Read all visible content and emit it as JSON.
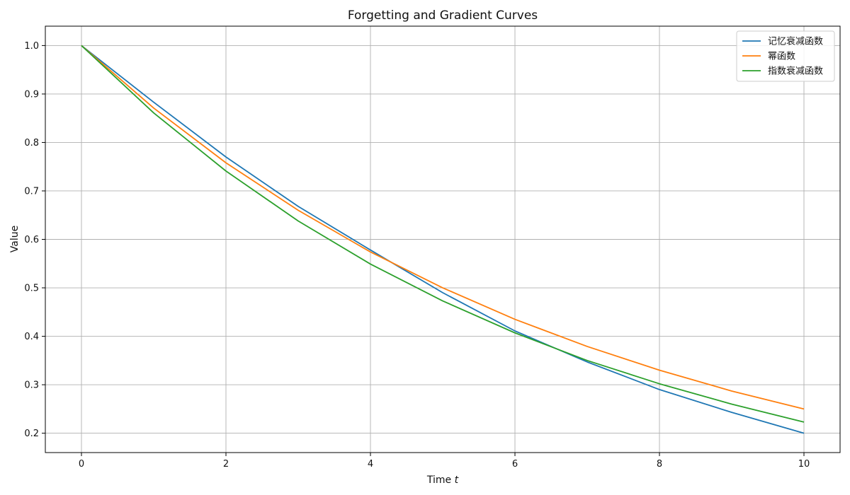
{
  "chart_data": {
    "type": "line",
    "title": "Forgetting and Gradient Curves",
    "xlabel": "Time",
    "xlabel_var": "t",
    "ylabel": "Value",
    "xlim": [
      -0.5,
      10.5
    ],
    "ylim": [
      0.16,
      1.04
    ],
    "xticks": [
      0,
      2,
      4,
      6,
      8,
      10
    ],
    "xtick_labels": [
      "0",
      "2",
      "4",
      "6",
      "8",
      "10"
    ],
    "yticks": [
      0.2,
      0.3,
      0.4,
      0.5,
      0.6,
      0.7,
      0.8,
      0.9,
      1.0
    ],
    "ytick_labels": [
      "0.2",
      "0.3",
      "0.4",
      "0.5",
      "0.6",
      "0.7",
      "0.8",
      "0.9",
      "1.0"
    ],
    "grid": true,
    "legend_position": "top-right",
    "x": [
      0,
      1,
      2,
      3,
      4,
      5,
      6,
      7,
      8,
      9,
      10
    ],
    "series": [
      {
        "name": "记忆衰减函数",
        "color": "#1f77b4",
        "values": [
          1.0,
          0.883,
          0.77,
          0.668,
          0.578,
          0.49,
          0.411,
          0.347,
          0.29,
          0.243,
          0.2
        ]
      },
      {
        "name": "幂函数",
        "color": "#ff7f0e",
        "values": [
          1.0,
          0.871,
          0.758,
          0.66,
          0.574,
          0.5,
          0.435,
          0.379,
          0.33,
          0.287,
          0.25
        ]
      },
      {
        "name": "指数衰减函数",
        "color": "#2ca02c",
        "values": [
          1.0,
          0.861,
          0.741,
          0.638,
          0.549,
          0.473,
          0.407,
          0.35,
          0.302,
          0.26,
          0.223
        ]
      }
    ]
  }
}
